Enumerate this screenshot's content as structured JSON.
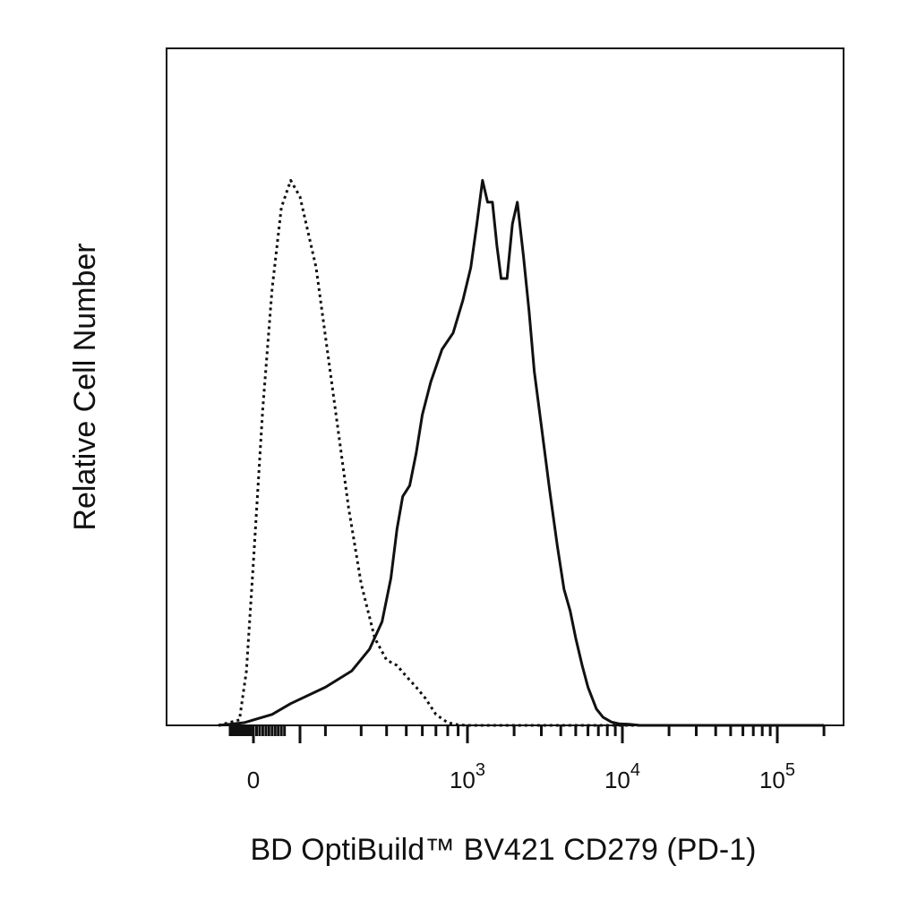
{
  "chart_data": {
    "type": "line",
    "title": "",
    "xlabel": "BD OptiBuild™  BV421 CD279 (PD-1)",
    "ylabel": "Relative Cell Number",
    "x_scale": "biexponential",
    "xlim": [
      -150,
      200000
    ],
    "ylim": [
      0,
      1
    ],
    "grid": false,
    "legend": "none",
    "x_tick_labels": [
      {
        "value": 0,
        "base": "0",
        "exp": ""
      },
      {
        "value": 1000,
        "base": "10",
        "exp": "3"
      },
      {
        "value": 10000,
        "base": "10",
        "exp": "4"
      },
      {
        "value": 100000,
        "base": "10",
        "exp": "5"
      }
    ],
    "series": [
      {
        "style": "dotted",
        "color": "#111111",
        "x": [
          -150,
          -60,
          -30,
          0,
          30,
          60,
          90,
          120,
          150,
          180,
          220,
          260,
          300,
          350,
          400,
          450,
          500,
          560,
          620,
          700,
          800,
          900,
          1000,
          1200,
          200000
        ],
        "y": [
          0.0,
          0.01,
          0.1,
          0.3,
          0.58,
          0.8,
          0.95,
          1.0,
          0.97,
          0.84,
          0.6,
          0.4,
          0.26,
          0.16,
          0.12,
          0.11,
          0.09,
          0.07,
          0.05,
          0.02,
          0.005,
          0.001,
          0.0,
          0.0,
          0.0
        ]
      },
      {
        "style": "solid",
        "color": "#111111",
        "x": [
          -150,
          -40,
          0,
          60,
          120,
          200,
          270,
          330,
          380,
          420,
          450,
          480,
          520,
          560,
          600,
          660,
          750,
          850,
          950,
          1050,
          1150,
          1250,
          1350,
          1450,
          1550,
          1650,
          1800,
          1950,
          2100,
          2300,
          2500,
          2700,
          3000,
          3400,
          3800,
          4200,
          4600,
          5000,
          5500,
          6000,
          6800,
          7500,
          8500,
          9500,
          11000,
          13000,
          16000,
          20000,
          200000
        ],
        "y": [
          0.0,
          0.005,
          0.01,
          0.02,
          0.04,
          0.07,
          0.1,
          0.14,
          0.19,
          0.27,
          0.36,
          0.42,
          0.44,
          0.5,
          0.57,
          0.63,
          0.69,
          0.72,
          0.78,
          0.84,
          0.92,
          1.0,
          0.96,
          0.96,
          0.88,
          0.82,
          0.82,
          0.92,
          0.96,
          0.86,
          0.76,
          0.65,
          0.55,
          0.43,
          0.33,
          0.25,
          0.21,
          0.16,
          0.11,
          0.07,
          0.03,
          0.015,
          0.006,
          0.003,
          0.002,
          0.0,
          0.0,
          0.0,
          0.0
        ]
      }
    ]
  }
}
